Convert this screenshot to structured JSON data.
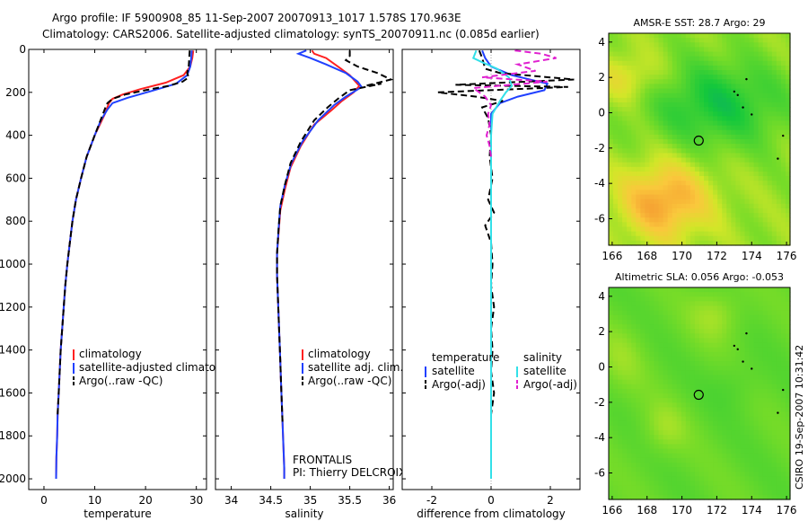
{
  "title_line1": "Argo profile: IF 5900908_85 11-Sep-2007 20070913_1017 1.578S 170.963E",
  "title_line2": "Climatology: CARS2006. Satellite-adjusted climatology: synTS_20070911.nc (0.085d earlier)",
  "credit": "CSIRO 19-Sep-2007 10:31:42",
  "float_info": {
    "program": "FRONTALIS",
    "pi": "PI: Thierry DELCROIX"
  },
  "colors": {
    "climatology": "#ff2020",
    "satellite": "#2040ff",
    "argo": "#000000",
    "sal_satellite": "#33e0e8",
    "sal_argo": "#e020d0"
  },
  "chart_data": [
    {
      "type": "line",
      "xlabel": "temperature",
      "xlim": [
        -3,
        32
      ],
      "ylim": [
        0,
        2050
      ],
      "y_reversed": true,
      "x_ticks": [
        0,
        10,
        20,
        30
      ],
      "y_ticks": [
        0,
        200,
        400,
        600,
        800,
        1000,
        1200,
        1400,
        1600,
        1800,
        2000
      ],
      "legend": {
        "location": "lower-right",
        "entries": [
          "climatology",
          "satellite-adjusted climatology",
          "Argo(..raw -QC)"
        ]
      },
      "series": [
        {
          "name": "climatology",
          "color": "#ff2020",
          "dash": "",
          "points": [
            [
              29.4,
              5
            ],
            [
              29.2,
              40
            ],
            [
              28.8,
              80
            ],
            [
              27.5,
              120
            ],
            [
              24,
              155
            ],
            [
              19,
              185
            ],
            [
              15.5,
              210
            ],
            [
              13.5,
              230
            ],
            [
              12.8,
              250
            ],
            [
              12,
              300
            ],
            [
              10,
              400
            ],
            [
              8.4,
              500
            ],
            [
              7.3,
              600
            ],
            [
              6.3,
              700
            ],
            [
              5.6,
              800
            ],
            [
              5.1,
              900
            ],
            [
              4.6,
              1000
            ],
            [
              4.2,
              1100
            ],
            [
              3.9,
              1200
            ],
            [
              3.6,
              1300
            ],
            [
              3.3,
              1400
            ],
            [
              3.1,
              1500
            ],
            [
              2.9,
              1600
            ],
            [
              2.7,
              1700
            ],
            [
              2.6,
              1800
            ],
            [
              2.45,
              1900
            ],
            [
              2.4,
              2000
            ]
          ]
        },
        {
          "name": "satellite-adjusted climatology",
          "color": "#2040ff",
          "dash": "",
          "points": [
            [
              29.1,
              5
            ],
            [
              29,
              40
            ],
            [
              28.8,
              80
            ],
            [
              28.2,
              120
            ],
            [
              26,
              160
            ],
            [
              21,
              195
            ],
            [
              16.5,
              225
            ],
            [
              13.5,
              250
            ],
            [
              12.5,
              280
            ],
            [
              11.2,
              330
            ],
            [
              10,
              400
            ],
            [
              8.4,
              500
            ],
            [
              7.3,
              600
            ],
            [
              6.3,
              700
            ],
            [
              5.6,
              800
            ],
            [
              5.1,
              900
            ],
            [
              4.6,
              1000
            ],
            [
              4.2,
              1100
            ],
            [
              3.9,
              1200
            ],
            [
              3.6,
              1300
            ],
            [
              3.3,
              1400
            ],
            [
              3.1,
              1500
            ],
            [
              2.9,
              1600
            ],
            [
              2.7,
              1700
            ],
            [
              2.6,
              1800
            ],
            [
              2.45,
              1900
            ],
            [
              2.4,
              2000
            ]
          ]
        },
        {
          "name": "Argo(..raw -QC)",
          "color": "#000000",
          "dash": "7 4",
          "points": [
            [
              28.7,
              5
            ],
            [
              28.6,
              40
            ],
            [
              28.5,
              80
            ],
            [
              28.2,
              110
            ],
            [
              28.5,
              130
            ],
            [
              27.3,
              150
            ],
            [
              24.5,
              170
            ],
            [
              20,
              190
            ],
            [
              16,
              210
            ],
            [
              13.5,
              230
            ],
            [
              12.5,
              250
            ],
            [
              12.2,
              265
            ],
            [
              11.3,
              320
            ],
            [
              10,
              400
            ],
            [
              8.4,
              500
            ],
            [
              7.3,
              600
            ],
            [
              6.3,
              700
            ],
            [
              5.6,
              800
            ],
            [
              5.1,
              900
            ],
            [
              4.6,
              1000
            ],
            [
              4.2,
              1100
            ],
            [
              3.9,
              1200
            ],
            [
              3.6,
              1300
            ],
            [
              3.3,
              1400
            ],
            [
              3.1,
              1500
            ],
            [
              2.9,
              1600
            ],
            [
              2.7,
              1700
            ]
          ]
        }
      ]
    },
    {
      "type": "line",
      "xlabel": "salinity",
      "xlim": [
        33.8,
        36.05
      ],
      "ylim": [
        0,
        2050
      ],
      "y_reversed": true,
      "x_ticks": [
        34,
        34.5,
        35,
        35.5,
        36
      ],
      "legend": {
        "location": "lower-right",
        "entries": [
          "climatology",
          "satellite adj. clim.",
          "Argo(..raw -QC)"
        ]
      },
      "series": [
        {
          "name": "climatology",
          "color": "#ff2020",
          "dash": "",
          "points": [
            [
              35.02,
              5
            ],
            [
              35.05,
              20
            ],
            [
              35.2,
              40
            ],
            [
              35.35,
              80
            ],
            [
              35.5,
              120
            ],
            [
              35.62,
              170
            ],
            [
              35.55,
              200
            ],
            [
              35.4,
              240
            ],
            [
              35.28,
              280
            ],
            [
              35.05,
              350
            ],
            [
              34.88,
              450
            ],
            [
              34.75,
              550
            ],
            [
              34.68,
              650
            ],
            [
              34.62,
              750
            ],
            [
              34.6,
              850
            ],
            [
              34.58,
              950
            ],
            [
              34.58,
              1050
            ],
            [
              34.59,
              1150
            ],
            [
              34.6,
              1250
            ],
            [
              34.61,
              1350
            ],
            [
              34.62,
              1450
            ],
            [
              34.63,
              1550
            ],
            [
              34.64,
              1650
            ],
            [
              34.65,
              1750
            ],
            [
              34.66,
              1850
            ],
            [
              34.67,
              1950
            ],
            [
              34.67,
              2000
            ]
          ]
        },
        {
          "name": "satellite adj. clim.",
          "color": "#2040ff",
          "dash": "",
          "points": [
            [
              34.95,
              5
            ],
            [
              34.85,
              20
            ],
            [
              35,
              40
            ],
            [
              35.2,
              70
            ],
            [
              35.45,
              110
            ],
            [
              35.6,
              150
            ],
            [
              35.65,
              175
            ],
            [
              35.45,
              220
            ],
            [
              35.3,
              260
            ],
            [
              35.1,
              330
            ],
            [
              34.9,
              430
            ],
            [
              34.76,
              530
            ],
            [
              34.68,
              630
            ],
            [
              34.62,
              730
            ],
            [
              34.6,
              830
            ],
            [
              34.58,
              950
            ],
            [
              34.58,
              1050
            ],
            [
              34.59,
              1150
            ],
            [
              34.6,
              1250
            ],
            [
              34.61,
              1350
            ],
            [
              34.62,
              1450
            ],
            [
              34.63,
              1550
            ],
            [
              34.64,
              1650
            ],
            [
              34.65,
              1750
            ],
            [
              34.66,
              1850
            ],
            [
              34.67,
              1950
            ],
            [
              34.67,
              2000
            ]
          ]
        },
        {
          "name": "Argo(..raw -QC)",
          "color": "#000000",
          "dash": "7 4",
          "points": [
            [
              35.5,
              5
            ],
            [
              35.5,
              30
            ],
            [
              35.45,
              50
            ],
            [
              35.6,
              80
            ],
            [
              35.85,
              110
            ],
            [
              36.02,
              140
            ],
            [
              35.7,
              170
            ],
            [
              35.9,
              160
            ],
            [
              35.5,
              190
            ],
            [
              35.35,
              230
            ],
            [
              35.22,
              270
            ],
            [
              35.05,
              330
            ],
            [
              34.88,
              430
            ],
            [
              34.75,
              530
            ],
            [
              34.68,
              630
            ],
            [
              34.62,
              730
            ],
            [
              34.6,
              830
            ],
            [
              34.58,
              950
            ],
            [
              34.58,
              1050
            ],
            [
              34.59,
              1150
            ],
            [
              34.6,
              1250
            ],
            [
              34.61,
              1350
            ],
            [
              34.62,
              1450
            ],
            [
              34.63,
              1550
            ],
            [
              34.64,
              1650
            ],
            [
              34.65,
              1750
            ]
          ]
        }
      ]
    },
    {
      "type": "line",
      "xlabel": "difference from climatology",
      "xlim": [
        -3,
        3
      ],
      "ylim": [
        0,
        2050
      ],
      "y_reversed": true,
      "x_ticks": [
        -2,
        0,
        2
      ],
      "legend_left": {
        "title": "temperature",
        "entries": [
          "satellite",
          "Argo(-adj)"
        ]
      },
      "legend_right": {
        "title": "salinity",
        "entries": [
          "satellite",
          "Argo(-adj)"
        ]
      },
      "series": [
        {
          "name": "temperature satellite",
          "color": "#2040ff",
          "dash": "",
          "points": [
            [
              -0.3,
              5
            ],
            [
              -0.2,
              40
            ],
            [
              0,
              80
            ],
            [
              0.7,
              120
            ],
            [
              1.9,
              160
            ],
            [
              1.8,
              190
            ],
            [
              0.9,
              220
            ],
            [
              0.3,
              250
            ],
            [
              0,
              300
            ],
            [
              0,
              400
            ],
            [
              0,
              600
            ],
            [
              0,
              1000
            ],
            [
              0,
              2000
            ]
          ]
        },
        {
          "name": "temperature Argo(-adj)",
          "color": "#000000",
          "dash": "7 4",
          "points": [
            [
              -0.4,
              5
            ],
            [
              -0.3,
              40
            ],
            [
              -0.2,
              90
            ],
            [
              0.3,
              110
            ],
            [
              2.8,
              140
            ],
            [
              -1.2,
              165
            ],
            [
              2.6,
              175
            ],
            [
              -1.8,
              200
            ],
            [
              -0.5,
              220
            ],
            [
              0.4,
              240
            ],
            [
              -0.3,
              270
            ],
            [
              -0.1,
              320
            ],
            [
              0,
              400
            ],
            [
              -0.05,
              500
            ],
            [
              0.05,
              600
            ],
            [
              -0.1,
              700
            ],
            [
              0.1,
              760
            ],
            [
              -0.2,
              820
            ],
            [
              0,
              900
            ],
            [
              0.05,
              1000
            ],
            [
              0,
              1100
            ],
            [
              0.1,
              1200
            ],
            [
              0,
              1300
            ],
            [
              0.05,
              1400
            ],
            [
              0,
              1500
            ],
            [
              0.1,
              1600
            ],
            [
              0,
              1700
            ]
          ]
        },
        {
          "name": "salinity satellite",
          "color": "#33e0e8",
          "dash": "",
          "points": [
            [
              -0.5,
              5
            ],
            [
              -0.6,
              40
            ],
            [
              -0.3,
              60
            ],
            [
              0.2,
              90
            ],
            [
              0.6,
              130
            ],
            [
              0.7,
              170
            ],
            [
              0.5,
              200
            ],
            [
              0.3,
              240
            ],
            [
              0.05,
              300
            ],
            [
              0,
              400
            ],
            [
              0,
              600
            ],
            [
              0,
              1000
            ],
            [
              0,
              2000
            ]
          ]
        },
        {
          "name": "salinity Argo(-adj)",
          "color": "#e020d0",
          "dash": "7 4",
          "points": [
            [
              0.8,
              5
            ],
            [
              1.7,
              20
            ],
            [
              2.2,
              40
            ],
            [
              0.9,
              70
            ],
            [
              1.5,
              100
            ],
            [
              -0.3,
              130
            ],
            [
              1.9,
              150
            ],
            [
              -0.6,
              180
            ],
            [
              -0.2,
              220
            ],
            [
              0,
              260
            ],
            [
              -0.1,
              300
            ],
            [
              -0.05,
              350
            ],
            [
              -0.15,
              400
            ],
            [
              -0.05,
              450
            ],
            [
              0,
              500
            ]
          ]
        }
      ]
    },
    {
      "type": "heatmap",
      "title": "AMSR-E SST: 28.7 Argo: 29",
      "xlim": [
        165.8,
        176.2
      ],
      "ylim": [
        -7.5,
        4.5
      ],
      "x_ticks": [
        166,
        168,
        170,
        172,
        174,
        176
      ],
      "y_ticks": [
        -6,
        -4,
        -2,
        0,
        2,
        4
      ],
      "marker": {
        "x": 170.963,
        "y": -1.578
      }
    },
    {
      "type": "heatmap",
      "title": "Altimetric SLA: 0.056 Argo: -0.053",
      "xlim": [
        165.8,
        176.2
      ],
      "ylim": [
        -7.5,
        4.5
      ],
      "x_ticks": [
        166,
        168,
        170,
        172,
        174,
        176
      ],
      "y_ticks": [
        -6,
        -4,
        -2,
        0,
        2,
        4
      ],
      "marker": {
        "x": 170.963,
        "y": -1.578
      }
    }
  ]
}
